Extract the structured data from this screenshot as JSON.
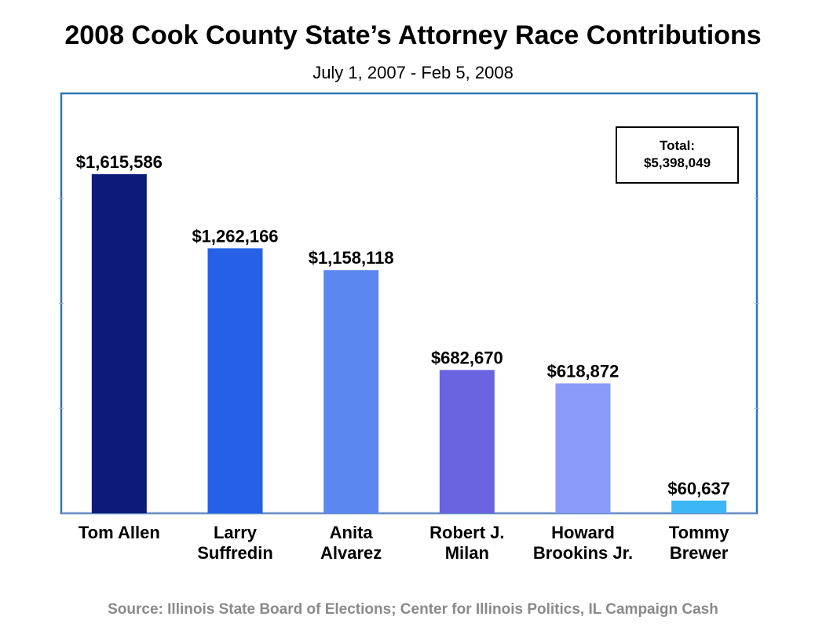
{
  "title": "2008 Cook County State’s Attorney Race Contributions",
  "subtitle": "July 1, 2007 - Feb 5, 2008",
  "source": "Source: Illinois State Board of Elections; Center for Illinois Politics, IL Campaign Cash",
  "total_box": {
    "label": "Total:",
    "value": "$5,398,049"
  },
  "colors": {
    "frame": "#2e75b6",
    "text": "#000000",
    "source_text": "#8a8a8a"
  },
  "chart_data": {
    "type": "bar",
    "title": "2008 Cook County State’s Attorney Race Contributions",
    "subtitle": "July 1, 2007 - Feb 5, 2008",
    "xlabel": "",
    "ylabel": "",
    "ylim": [
      0,
      2000000
    ],
    "grid": false,
    "legend": "none",
    "categories": [
      [
        "Tom Allen"
      ],
      [
        "Larry",
        "Suffredin"
      ],
      [
        "Anita",
        "Alvarez"
      ],
      [
        "Robert J.",
        "Milan"
      ],
      [
        "Howard",
        "Brookins Jr."
      ],
      [
        "Tommy",
        "Brewer"
      ]
    ],
    "values": [
      1615586,
      1262166,
      1158118,
      682670,
      618872,
      60637
    ],
    "value_labels": [
      "$1,615,586",
      "$1,262,166",
      "$1,158,118",
      "$682,670",
      "$618,872",
      "$60,637"
    ],
    "bar_colors": [
      "#0d1a7a",
      "#2560e6",
      "#5b87f0",
      "#6a64e0",
      "#8a9af8",
      "#3db6f5"
    ],
    "annotations": [
      "Total:",
      "$5,398,049"
    ]
  }
}
